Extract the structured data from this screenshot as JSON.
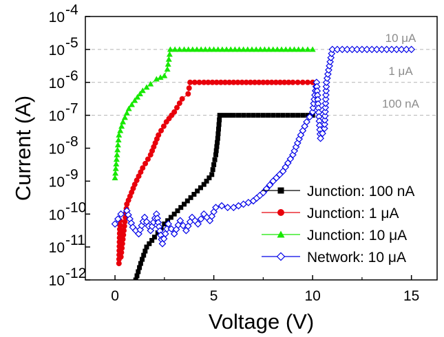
{
  "chart_data": {
    "type": "scatter",
    "xlabel": "Voltage (V)",
    "ylabel": "Current (A)",
    "xlim": [
      -1.5,
      16.3
    ],
    "ylim_exponent": [
      -12,
      -4
    ],
    "y_scale": "log",
    "x_ticks": [
      0,
      5,
      10,
      15
    ],
    "x_tick_labels": [
      "0",
      "5",
      "10",
      "15"
    ],
    "y_tick_exponents": [
      -12,
      -11,
      -10,
      -9,
      -8,
      -7,
      -6,
      -5,
      -4
    ],
    "y_tick_mantissa": "10",
    "y_tick_exponent_labels": [
      "-12",
      "-11",
      "-10",
      "-9",
      "-8",
      "-7",
      "-6",
      "-5",
      "-4"
    ],
    "grid": false,
    "legend_position": "bottom-right",
    "reference_lines": [
      {
        "label": "10 μA",
        "value": 1e-05,
        "color": "#b4b4b4"
      },
      {
        "label": "1 μA",
        "value": 1e-06,
        "color": "#b4b4b4"
      },
      {
        "label": "100 nA",
        "value": 1e-07,
        "color": "#b4b4b4"
      }
    ],
    "series": [
      {
        "name": "Junction: 100 nA",
        "color": "#000000",
        "marker": "square-filled",
        "x": [
          1.05,
          1.3,
          1.6,
          2.0,
          2.5,
          3.0,
          3.5,
          4.0,
          4.5,
          4.9,
          5.1,
          5.2,
          5.3,
          6.0,
          7.0,
          8.0,
          9.0,
          10.0
        ],
        "log10y": [
          -12.0,
          -11.5,
          -11.0,
          -10.7,
          -10.3,
          -10.0,
          -9.7,
          -9.4,
          -9.1,
          -8.8,
          -8.2,
          -7.7,
          -7.0,
          -7.0,
          -7.0,
          -7.0,
          -7.0,
          -7.0
        ]
      },
      {
        "name": "Junction: 1 μA",
        "color": "#e8000b",
        "marker": "circle-filled",
        "x": [
          0.2,
          0.25,
          0.3,
          0.6,
          1.0,
          1.4,
          1.8,
          2.2,
          2.6,
          3.0,
          3.4,
          3.7,
          3.8,
          4.5,
          6.0,
          7.5,
          9.0,
          10.0
        ],
        "log10y": [
          -11.5,
          -10.2,
          -11.3,
          -9.7,
          -9.1,
          -8.6,
          -8.2,
          -7.6,
          -7.2,
          -6.9,
          -6.5,
          -6.35,
          -6.0,
          -6.0,
          -6.0,
          -6.0,
          -6.0,
          -6.0
        ]
      },
      {
        "name": "Junction: 10 μA",
        "color": "#17e800",
        "marker": "triangle-filled",
        "x": [
          0.0,
          0.1,
          0.2,
          0.4,
          0.7,
          1.0,
          1.4,
          1.8,
          2.1,
          2.3,
          2.5,
          2.65,
          2.8,
          3.5,
          5.0,
          6.5,
          8.0,
          9.5,
          10.0
        ],
        "log10y": [
          -8.9,
          -8.2,
          -7.6,
          -7.2,
          -6.8,
          -6.55,
          -6.25,
          -6.05,
          -5.9,
          -5.85,
          -5.8,
          -5.6,
          -5.0,
          -5.0,
          -5.0,
          -5.0,
          -5.0,
          -5.0,
          -5.0
        ]
      },
      {
        "name": "Network: 10 μA",
        "color": "#0000e8",
        "marker": "diamond-open",
        "x": [
          0.0,
          0.3,
          0.6,
          0.9,
          1.2,
          1.5,
          1.8,
          2.1,
          2.4,
          2.7,
          3.0,
          3.3,
          3.6,
          3.9,
          4.2,
          4.5,
          4.8,
          5.1,
          5.4,
          5.7,
          6.0,
          6.5,
          7.0,
          7.5,
          8.0,
          8.5,
          9.0,
          9.4,
          9.7,
          10.0,
          10.2,
          10.4,
          10.6,
          10.7,
          11.0,
          12.0,
          13.0,
          14.0,
          15.0
        ],
        "log10y": [
          -10.3,
          -10.0,
          -9.9,
          -10.4,
          -10.6,
          -10.1,
          -10.5,
          -10.0,
          -10.9,
          -10.3,
          -10.6,
          -10.2,
          -10.5,
          -10.1,
          -10.3,
          -10.0,
          -10.2,
          -9.8,
          -9.75,
          -9.8,
          -9.8,
          -9.7,
          -9.6,
          -9.35,
          -9.0,
          -8.7,
          -8.2,
          -7.6,
          -7.2,
          -6.9,
          -6.0,
          -7.7,
          -7.4,
          -6.0,
          -5.0,
          -5.0,
          -5.0,
          -5.0,
          -5.0
        ]
      }
    ]
  }
}
